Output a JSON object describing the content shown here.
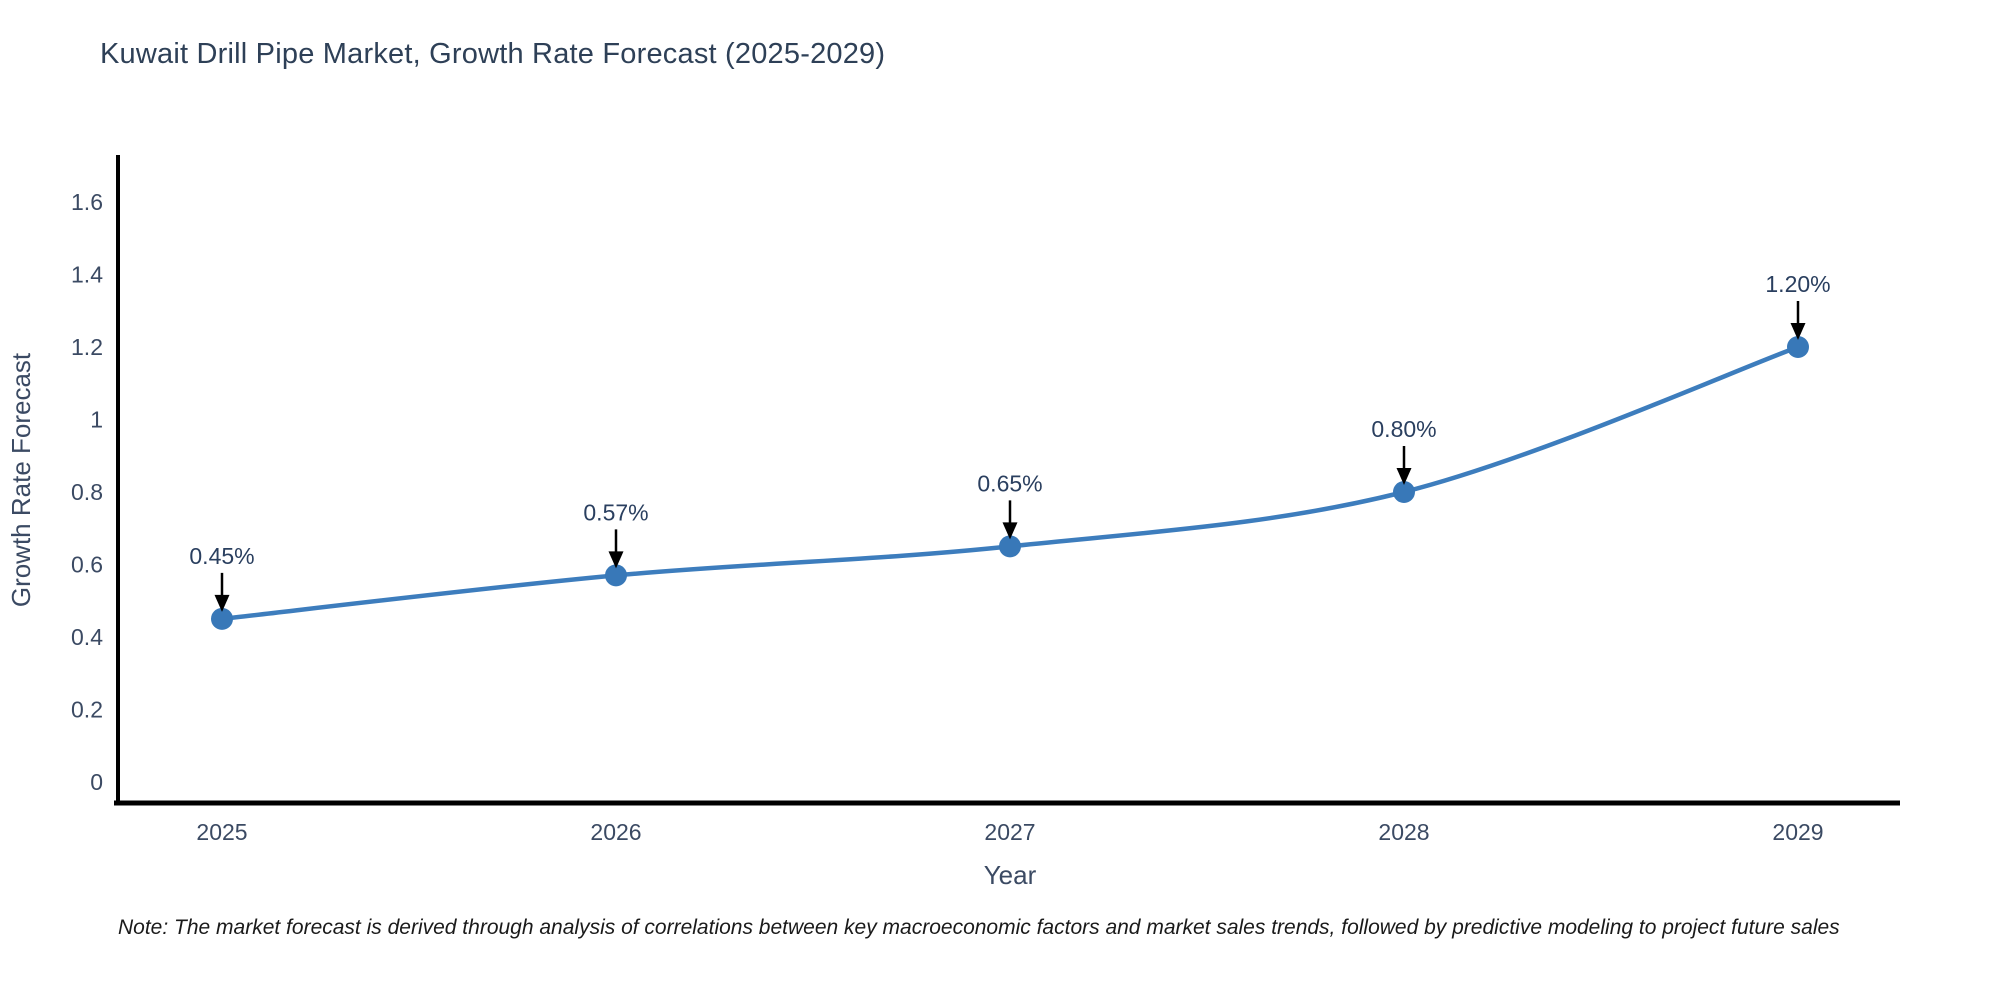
{
  "page": {
    "title": "Kuwait Drill Pipe Market, Growth Rate Forecast (2025-2029)",
    "note": "Note: The market forecast is derived through analysis of correlations between key macroeconomic factors and market sales trends, followed by predictive modeling to project future sales"
  },
  "chart_data": {
    "type": "line",
    "title": "Kuwait Drill Pipe Market, Growth Rate Forecast (2025-2029)",
    "xlabel": "Year",
    "ylabel": "Growth Rate Forecast",
    "x": [
      2025,
      2026,
      2027,
      2028,
      2029
    ],
    "series": [
      {
        "name": "Growth Rate Forecast",
        "values": [
          0.45,
          0.57,
          0.65,
          0.8,
          1.2
        ],
        "point_labels": [
          "0.45%",
          "0.57%",
          "0.65%",
          "0.80%",
          "1.20%"
        ]
      }
    ],
    "xtick_labels": [
      "2025",
      "2026",
      "2027",
      "2028",
      "2029"
    ],
    "ytick_values": [
      0,
      0.2,
      0.4,
      0.6,
      0.8,
      1,
      1.2,
      1.4,
      1.6
    ],
    "ytick_labels": [
      "0",
      "0.2",
      "0.4",
      "0.6",
      "0.8",
      "1",
      "1.2",
      "1.4",
      "1.6"
    ],
    "ylim": [
      0,
      1.72
    ],
    "grid": false,
    "legend_position": "none",
    "line_shape": "spline",
    "colors": {
      "line": "#3d7dbd",
      "marker": "#3878b8",
      "axis": "#000000",
      "tick_text": "#3b4a63",
      "axis_title_text": "#3b4a63",
      "annotation_text": "#2a3f5f",
      "annotation_arrow": "#000000",
      "title_text": "#2e4057"
    }
  }
}
